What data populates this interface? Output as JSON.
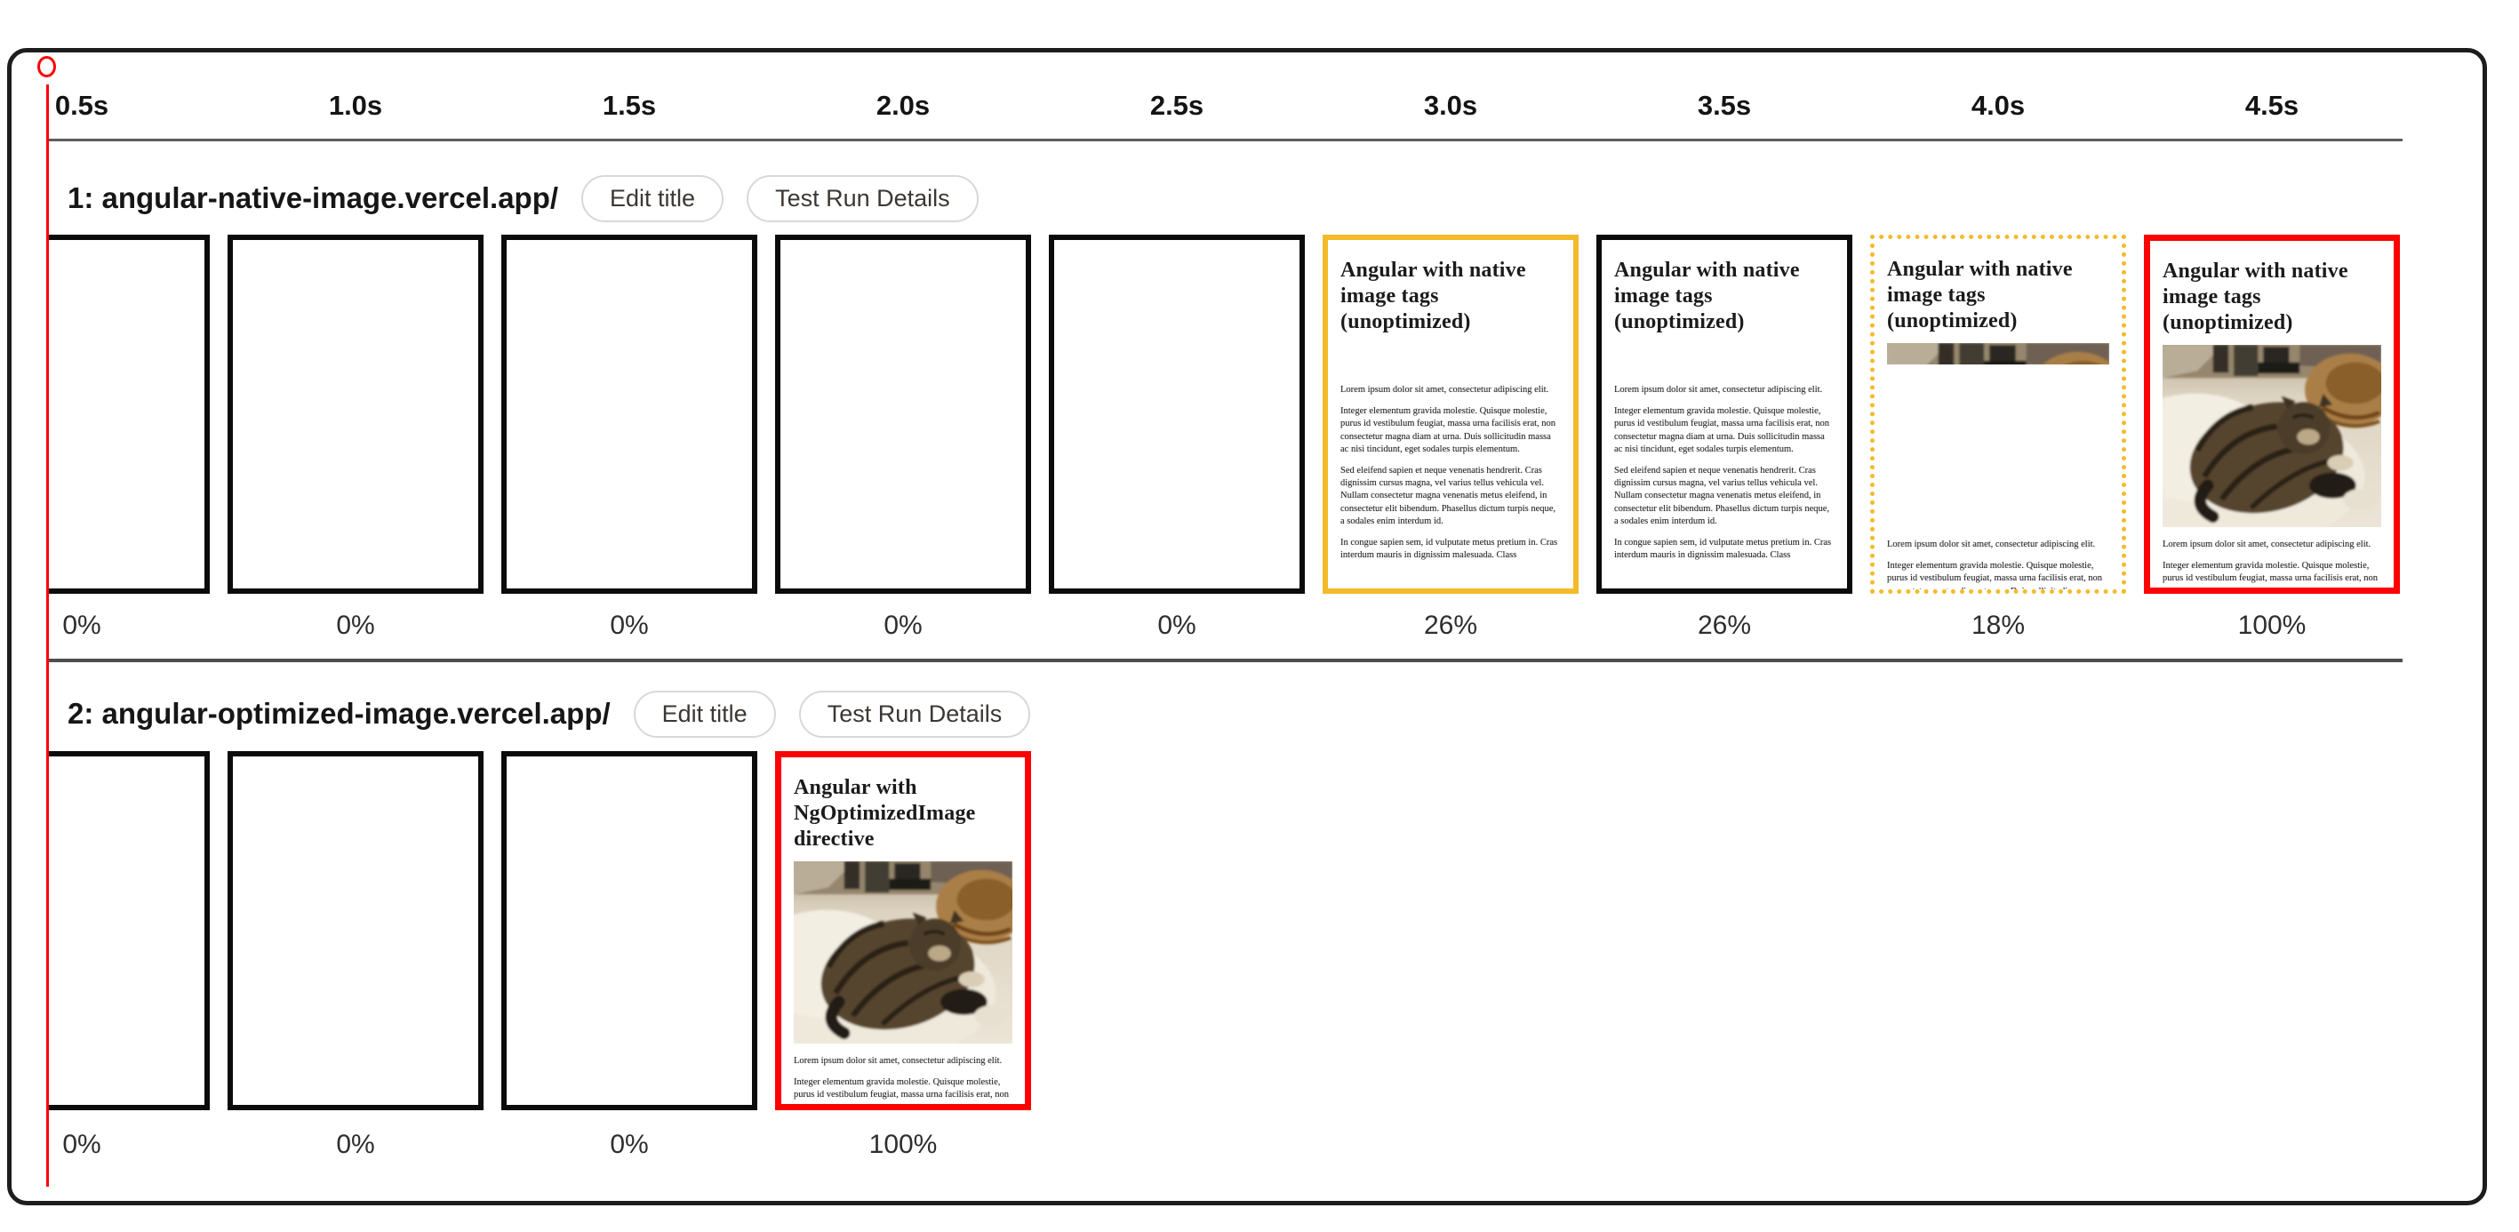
{
  "panel": {
    "type": "filmstrip-comparison"
  },
  "timeline": {
    "labels": [
      "0.5s",
      "1.0s",
      "1.5s",
      "2.0s",
      "2.5s",
      "3.0s",
      "3.5s",
      "4.0s",
      "4.5s"
    ]
  },
  "colors": {
    "highlight_orange": "#f3bb2a",
    "highlight_red": "#fd0202",
    "frame_border_black": "#0b0b0b",
    "playhead_red": "#fb0007"
  },
  "runs": [
    {
      "title": "1: angular-native-image.vercel.app/",
      "edit_title_label": "Edit title",
      "details_label": "Test Run Details",
      "page": {
        "heading": "Angular with native image tags (unoptimized)",
        "paragraphs": [
          "Lorem ipsum dolor sit amet, consectetur adipiscing elit.",
          "Integer elementum gravida molestie. Quisque molestie, purus id vestibulum feugiat, massa urna facilisis erat, non consectetur magna diam at urna. Duis sollicitudin massa ac nisi tincidunt, eget sodales turpis elementum.",
          "Sed eleifend sapien et neque venenatis hendrerit. Cras dignissim cursus magna, vel varius tellus vehicula vel. Nullam consectetur magna venenatis metus eleifend, in consectetur elit bibendum. Phasellus dictum turpis neque, a sodales enim interdum id.",
          "In congue sapien sem, id vulputate metus pretium in. Cras interdum mauris in dignissim malesuada. Class"
        ]
      },
      "frames": [
        {
          "progress": "0%",
          "border": "black",
          "content": "blank"
        },
        {
          "progress": "0%",
          "border": "black",
          "content": "blank"
        },
        {
          "progress": "0%",
          "border": "black",
          "content": "blank"
        },
        {
          "progress": "0%",
          "border": "black",
          "content": "blank"
        },
        {
          "progress": "0%",
          "border": "black",
          "content": "blank"
        },
        {
          "progress": "26%",
          "border": "orange",
          "content": "text"
        },
        {
          "progress": "26%",
          "border": "black",
          "content": "text"
        },
        {
          "progress": "18%",
          "border": "orange-dotted",
          "content": "strip-image"
        },
        {
          "progress": "100%",
          "border": "red",
          "content": "full-image"
        }
      ]
    },
    {
      "title": "2: angular-optimized-image.vercel.app/",
      "edit_title_label": "Edit title",
      "details_label": "Test Run Details",
      "page": {
        "heading": "Angular with NgOptimizedImage directive",
        "paragraphs": [
          "Lorem ipsum dolor sit amet, consectetur adipiscing elit.",
          "Integer elementum gravida molestie. Quisque molestie, purus id vestibulum feugiat, massa urna facilisis erat, non consectetur magna diam at urna. Duis sollicitudin massa ac nisi tincidunt, eget sodales turpis elementum."
        ]
      },
      "frames": [
        {
          "progress": "0%",
          "border": "black",
          "content": "blank"
        },
        {
          "progress": "0%",
          "border": "black",
          "content": "blank"
        },
        {
          "progress": "0%",
          "border": "black",
          "content": "blank"
        },
        {
          "progress": "100%",
          "border": "red",
          "content": "full-image"
        }
      ]
    }
  ]
}
